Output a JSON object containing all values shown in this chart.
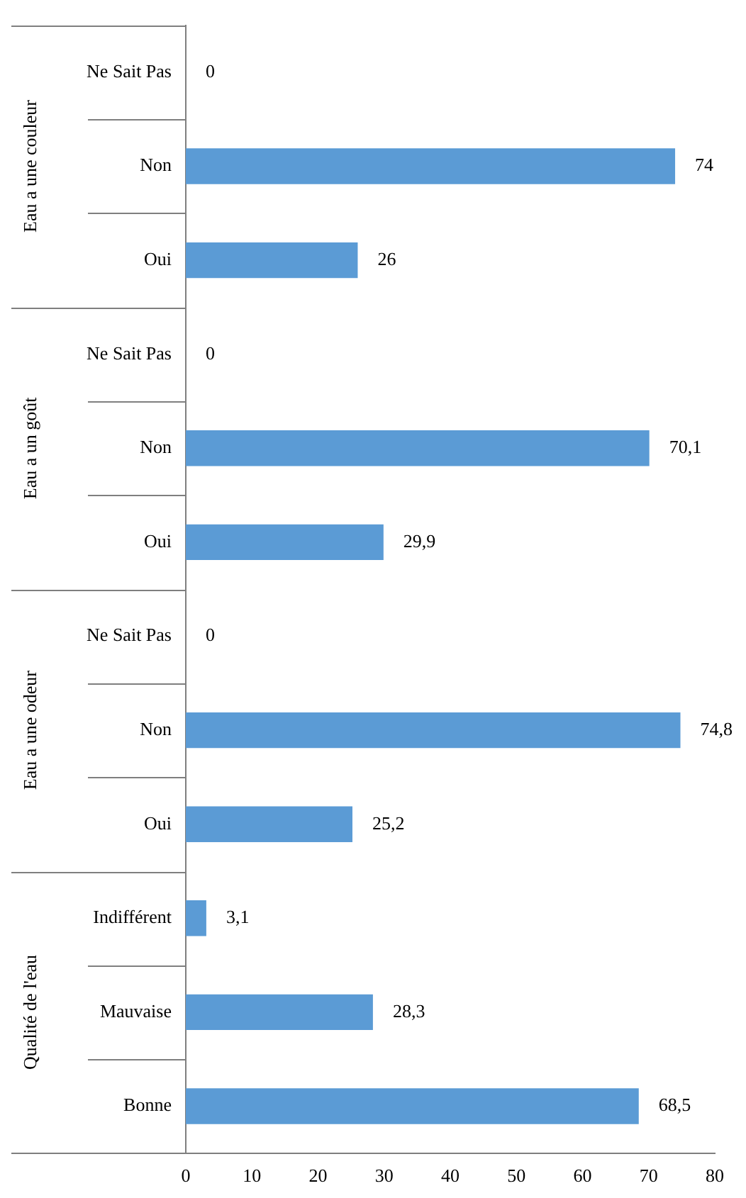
{
  "chart_data": {
    "type": "bar",
    "orientation": "horizontal",
    "categories": [
      "Ne Sait Pas",
      "Non",
      "Oui",
      "Ne Sait Pas",
      "Non",
      "Oui",
      "Ne Sait Pas",
      "Non",
      "Oui",
      "Indifférent",
      "Mauvaise",
      "Bonne"
    ],
    "values": [
      0,
      74,
      26,
      0,
      70.1,
      29.9,
      0,
      74.8,
      25.2,
      3.1,
      28.3,
      68.5
    ],
    "value_labels": [
      "0",
      "74",
      "26",
      "0",
      "70,1",
      "29,9",
      "0",
      "74,8",
      "25,2",
      "3,1",
      "28,3",
      "68,5"
    ],
    "color": "#5b9bd5",
    "xlim": [
      0,
      80
    ],
    "xticks": [
      0,
      10,
      20,
      30,
      40,
      50,
      60,
      70,
      80
    ],
    "annotations": [
      "Eau a une couleur",
      "Eau a un goût",
      "Eau a une odeur",
      "Qualité de l'eau"
    ],
    "grid": false,
    "legend": false
  }
}
